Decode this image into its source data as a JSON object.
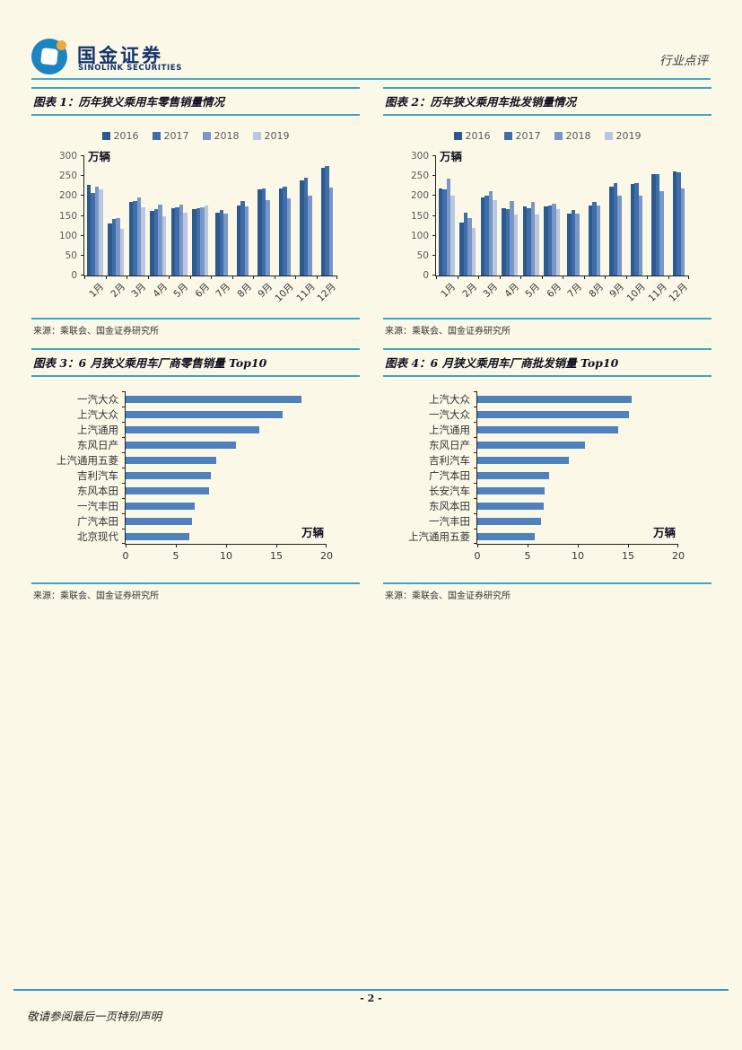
{
  "header": {
    "brand_cn": "国金证券",
    "brand_en": "SINOLINK SECURITIES",
    "doc_type": "行业点评"
  },
  "colors": {
    "series": [
      "#2d5a8e",
      "#3e6daa",
      "#7b97c6",
      "#b9c7e0"
    ],
    "hbar": "#4f81bd",
    "rule": "#3da4c6",
    "footer_rule": "#2e96d3",
    "background": "#fcf8e8"
  },
  "chart_data": [
    {
      "id": "retail_monthly",
      "type": "bar",
      "title": "图表 1：历年狭义乘用车零售销量情况",
      "source": "来源：乘联会、国金证券研究所",
      "categories": [
        "1月",
        "2月",
        "3月",
        "4月",
        "5月",
        "6月",
        "7月",
        "8月",
        "9月",
        "10月",
        "11月",
        "12月"
      ],
      "series": [
        {
          "name": "2016",
          "values": [
            228,
            131,
            184,
            162,
            170,
            166,
            157,
            175,
            216,
            218,
            239,
            271
          ]
        },
        {
          "name": "2017",
          "values": [
            207,
            143,
            188,
            166,
            172,
            169,
            164,
            188,
            219,
            223,
            247,
            275
          ]
        },
        {
          "name": "2018",
          "values": [
            223,
            144,
            196,
            179,
            179,
            172,
            156,
            173,
            190,
            193,
            201,
            220
          ]
        },
        {
          "name": "2019",
          "values": [
            216,
            117,
            172,
            150,
            158,
            175,
            null,
            null,
            null,
            null,
            null,
            null
          ]
        }
      ],
      "ylabel": "万辆",
      "ylim": [
        0,
        300
      ],
      "yticks": [
        0,
        50,
        100,
        150,
        200,
        250,
        300
      ],
      "legend_position": "top",
      "grid": false
    },
    {
      "id": "wholesale_monthly",
      "type": "bar",
      "title": "图表 2：历年狭义乘用车批发销量情况",
      "source": "来源：乘联会、国金证券研究所",
      "categories": [
        "1月",
        "2月",
        "3月",
        "4月",
        "5月",
        "6月",
        "7月",
        "8月",
        "9月",
        "10月",
        "11月",
        "12月"
      ],
      "series": [
        {
          "name": "2016",
          "values": [
            219,
            132,
            196,
            170,
            173,
            174,
            156,
            176,
            224,
            231,
            255,
            262
          ]
        },
        {
          "name": "2017",
          "values": [
            216,
            158,
            200,
            166,
            169,
            177,
            165,
            185,
            232,
            232,
            256,
            260
          ]
        },
        {
          "name": "2018",
          "values": [
            243,
            144,
            211,
            187,
            184,
            181,
            156,
            175,
            201,
            201,
            213,
            218
          ]
        },
        {
          "name": "2019",
          "values": [
            201,
            120,
            190,
            153,
            153,
            167,
            null,
            null,
            null,
            null,
            null,
            null
          ]
        }
      ],
      "ylabel": "万辆",
      "ylim": [
        0,
        300
      ],
      "yticks": [
        0,
        50,
        100,
        150,
        200,
        250,
        300
      ],
      "legend_position": "top",
      "grid": false
    },
    {
      "id": "retail_top10",
      "type": "hbar",
      "title": "图表 3：6 月狭义乘用车厂商零售销量 Top10",
      "source": "来源：乘联会、国金证券研究所",
      "categories": [
        "一汽大众",
        "上汽大众",
        "上汽通用",
        "东风日产",
        "上汽通用五菱",
        "吉利汽车",
        "东风本田",
        "一汽丰田",
        "广汽本田",
        "北京现代"
      ],
      "values": [
        17.5,
        15.6,
        13.3,
        11.0,
        9.0,
        8.5,
        8.3,
        6.9,
        6.6,
        6.3
      ],
      "xlabel": "万辆",
      "xlim": [
        0,
        20
      ],
      "xticks": [
        0,
        5,
        10,
        15,
        20
      ],
      "grid": false
    },
    {
      "id": "wholesale_top10",
      "type": "hbar",
      "title": "图表 4：6 月狭义乘用车厂商批发销量 Top10",
      "source": "来源：乘联会、国金证券研究所",
      "categories": [
        "上汽大众",
        "一汽大众",
        "上汽通用",
        "东风日产",
        "吉利汽车",
        "广汽本田",
        "长安汽车",
        "东风本田",
        "一汽丰田",
        "上汽通用五菱"
      ],
      "values": [
        15.4,
        15.1,
        14.0,
        10.7,
        9.1,
        7.1,
        6.7,
        6.6,
        6.3,
        5.7
      ],
      "xlabel": "万辆",
      "xlim": [
        0,
        20
      ],
      "xticks": [
        0,
        5,
        10,
        15,
        20
      ],
      "grid": false
    }
  ],
  "footer": {
    "page_number": "- 2 -",
    "disclaimer": "敬请参阅最后一页特别声明"
  }
}
